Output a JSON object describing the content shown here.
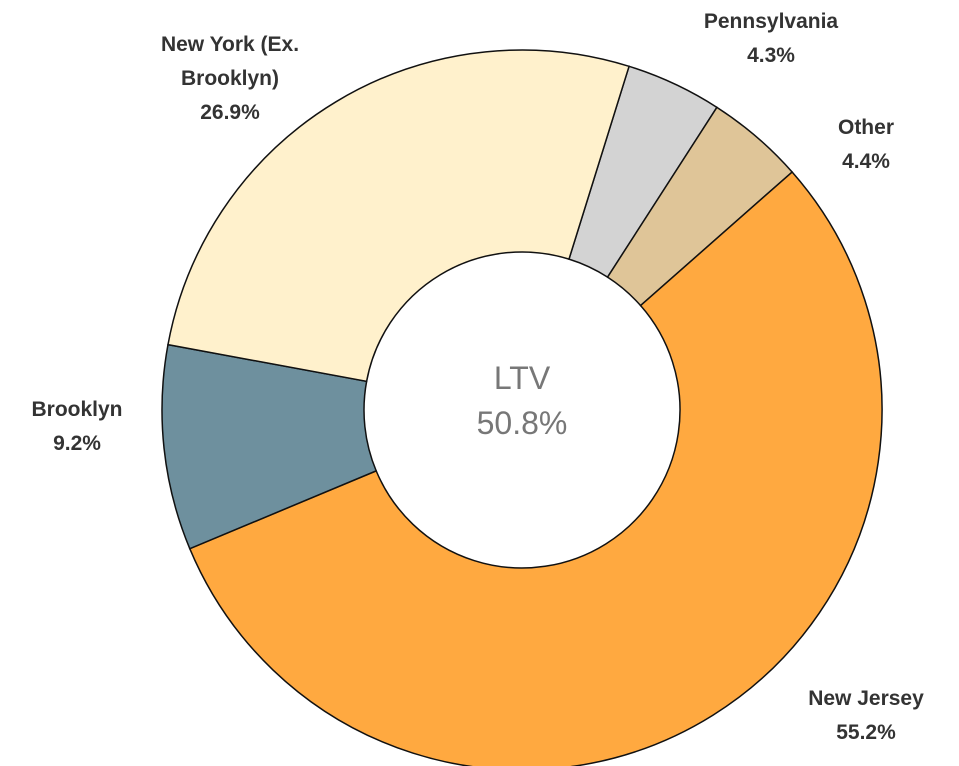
{
  "chart_data": {
    "type": "donut",
    "categories": [
      "Pennsylvania",
      "Other",
      "New Jersey",
      "Brooklyn",
      "New York (Ex. Brooklyn)"
    ],
    "values": [
      4.3,
      4.4,
      55.2,
      9.2,
      26.9
    ],
    "value_labels": [
      "4.3%",
      "4.4%",
      "55.2%",
      "9.2%",
      "26.9%"
    ],
    "colors": [
      "#d3d3d3",
      "#dfc598",
      "#ffa940",
      "#6e909e",
      "#fff1cc"
    ],
    "center_label": "LTV",
    "center_value": "50.8%"
  }
}
